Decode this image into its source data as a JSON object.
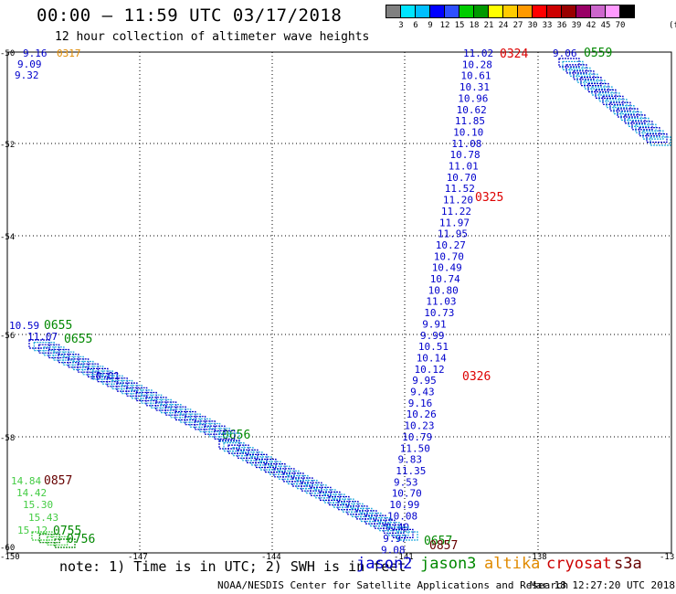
{
  "header": {
    "title": "00:00 – 11:59 UTC 03/17/2018",
    "subtitle": "12 hour collection of altimeter wave heights"
  },
  "color_scale": {
    "unit": "(ft)",
    "colors": [
      "#808080",
      "#00e5ff",
      "#00bfff",
      "#0000ff",
      "#2e4fff",
      "#00cc00",
      "#009900",
      "#ffff00",
      "#ffcc00",
      "#ff9900",
      "#ff0000",
      "#cc0000",
      "#990000",
      "#990066",
      "#cc66cc",
      "#ff99ff",
      "#000000"
    ],
    "labels": [
      "3",
      "6",
      "9",
      "12",
      "15",
      "18",
      "21",
      "24",
      "27",
      "30",
      "33",
      "36",
      "39",
      "42",
      "45",
      "70"
    ]
  },
  "axes": {
    "lon_labels": [
      "-150",
      "-147",
      "-144",
      "-141",
      "-138",
      "-13"
    ],
    "lat_labels": [
      "-50",
      "-52",
      "-54",
      "-56",
      "-58",
      "-60"
    ]
  },
  "tracks": {
    "cryosat_tl": {
      "time": "0317",
      "values": [
        "9.16",
        "9.09",
        "9.32"
      ]
    },
    "jason2": {
      "time_top": "0324",
      "time_mid": "0325",
      "time_bot": "0326",
      "values": [
        "11.02",
        "10.28",
        "10.61",
        "10.31",
        "10.96",
        "10.62",
        "11.85",
        "10.10",
        "11.08",
        "10.78",
        "11.01",
        "10.70",
        "11.52",
        "11.20",
        "11.22",
        "11.97",
        "11.95",
        "10.27",
        "10.70",
        "10.49",
        "10.74",
        "10.80",
        "11.03",
        "10.73",
        "9.91",
        "9.99",
        "10.51",
        "10.14",
        "10.12",
        "9.95",
        "9.43",
        "9.16",
        "10.26",
        "10.23",
        "10.79",
        "11.50",
        "9.83",
        "11.35",
        "9.53",
        "10.70",
        "10.99",
        "10.08",
        "9.49",
        "9.97",
        "9.08"
      ]
    },
    "jason3_tr": {
      "time": "0559",
      "first": "9.06"
    },
    "jason3_left": {
      "time_a": "0655",
      "time_b": "0655",
      "time_c": "0656",
      "first": "10.59",
      "second": "11.07",
      "mid": "10.01"
    },
    "s3a_bl": {
      "time": "0857",
      "values": [
        "14.84",
        "14.42",
        "15.30",
        "15.43",
        "15.12"
      ]
    },
    "jason3_bl": {
      "time_a": "0755",
      "time_b": "0756"
    },
    "jason3_bottom": {
      "time": "0657"
    },
    "s3a_bottom": {
      "time": "0857"
    }
  },
  "footer": {
    "note": "note: 1) Time is in UTC; 2) SWH is in feet",
    "legend": [
      {
        "name": "jason2",
        "color": "#0000cc"
      },
      {
        "name": "jason3",
        "color": "#008800"
      },
      {
        "name": "altika",
        "color": "#e08a00"
      },
      {
        "name": "cryosat",
        "color": "#cc0000"
      },
      {
        "name": "s3a",
        "color": "#660000"
      }
    ],
    "credit": "NOAA/NESDIS Center for Satellite Applications and Research",
    "updated": "Mar 18 12:27:20 UTC 2018"
  }
}
